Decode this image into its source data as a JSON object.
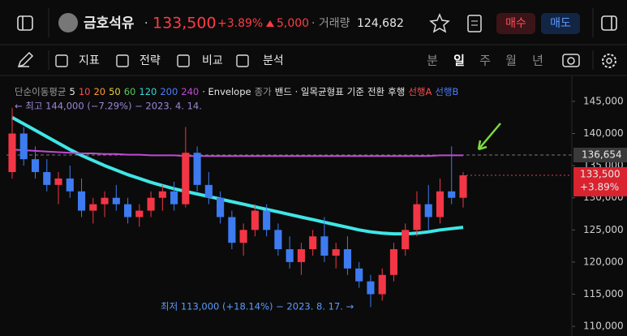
{
  "header": {
    "title": "금호석유",
    "price": "133,500",
    "change_pct": "+3.89%",
    "change_abs": "5,000",
    "volume_label": "· 거래량",
    "volume": "124,682",
    "buy": "매수",
    "sell": "매도"
  },
  "toolbar": {
    "tools": [
      "지표",
      "전략",
      "비교",
      "분석"
    ],
    "periods": [
      "분",
      "일",
      "주",
      "월",
      "년"
    ],
    "selected_period": 1
  },
  "chart_data": {
    "type": "candlestick",
    "legend": [
      {
        "text": "단순이동평균",
        "color": "#9a9a9a"
      },
      {
        "text": "5",
        "color": "#e8e8e8"
      },
      {
        "text": "10",
        "color": "#ff4d4d"
      },
      {
        "text": "20",
        "color": "#ff9a2e"
      },
      {
        "text": "50",
        "color": "#e6d23a"
      },
      {
        "text": "60",
        "color": "#5bc85b"
      },
      {
        "text": "120",
        "color": "#3ad6d6"
      },
      {
        "text": "200",
        "color": "#4a7dff"
      },
      {
        "text": "240",
        "color": "#c04ad6"
      },
      {
        "text": "· Envelope",
        "color": "#e8e8e8"
      },
      {
        "text": "종가",
        "color": "#9a9a9a"
      },
      {
        "text": "밴드 · 일목균형표",
        "color": "#e8e8e8"
      },
      {
        "text": "기준",
        "color": "#e8e8e8"
      },
      {
        "text": "전환",
        "color": "#e8e8e8"
      },
      {
        "text": "후행",
        "color": "#e8e8e8"
      },
      {
        "text": "선행A",
        "color": "#ff4d4d"
      },
      {
        "text": "선행B",
        "color": "#4a7dff"
      }
    ],
    "high_note": "← 최고 144,000 (−7.29%) − 2023. 4. 14.",
    "low_note": "최저 113,000 (+18.14%) − 2023. 8. 17. →",
    "up_color": "#f23645",
    "down_color": "#3d7bf0",
    "open": [
      134000,
      140000,
      136000,
      134000,
      132000,
      133000,
      131000,
      128000,
      129000,
      130000,
      129000,
      127000,
      128000,
      130000,
      131000,
      129000,
      137000,
      132000,
      130000,
      127000,
      123000,
      125000,
      128000,
      125000,
      122000,
      120000,
      122000,
      124000,
      121000,
      122000,
      119000,
      117000,
      115000,
      118000,
      122000,
      125000,
      129000,
      127000,
      131000,
      130000
    ],
    "high": [
      144000,
      141000,
      138000,
      136000,
      134000,
      135000,
      133000,
      130000,
      131000,
      132000,
      130000,
      129000,
      131000,
      132000,
      132500,
      141000,
      138000,
      134000,
      131000,
      128000,
      126000,
      129000,
      129000,
      126000,
      124000,
      123000,
      125000,
      127000,
      123000,
      124000,
      120000,
      118000,
      119000,
      123000,
      126000,
      131000,
      132000,
      133000,
      138000,
      134000
    ],
    "low": [
      133000,
      135000,
      133000,
      131000,
      129000,
      130000,
      127000,
      126000,
      127000,
      128000,
      126000,
      125500,
      127000,
      128000,
      128000,
      128500,
      131000,
      129000,
      126000,
      122000,
      121000,
      124000,
      124000,
      121000,
      119000,
      118000,
      121000,
      120000,
      119000,
      118000,
      116000,
      113000,
      114000,
      117000,
      121000,
      124000,
      125000,
      126000,
      129000,
      128500
    ],
    "close": [
      140000,
      136000,
      134000,
      132000,
      133000,
      131000,
      128000,
      129000,
      130000,
      129000,
      127000,
      128000,
      130000,
      131000,
      129000,
      137000,
      132000,
      130000,
      127000,
      123000,
      125000,
      128000,
      125000,
      122000,
      120000,
      122000,
      124000,
      121000,
      122000,
      119000,
      117000,
      115000,
      118000,
      122000,
      125000,
      129000,
      127000,
      131000,
      130000,
      133500
    ],
    "series": [
      {
        "name": "120",
        "color": "#3fe6e6",
        "values": [
          142500,
          141500,
          140500,
          139500,
          138500,
          137500,
          136600,
          135800,
          135000,
          134300,
          133600,
          133000,
          132400,
          131900,
          131400,
          131000,
          130600,
          130200,
          129800,
          129400,
          129000,
          128600,
          128200,
          127800,
          127400,
          127000,
          126600,
          126200,
          125800,
          125400,
          125000,
          124700,
          124500,
          124400,
          124400,
          124500,
          124700,
          125000,
          125200,
          125400
        ]
      },
      {
        "name": "240",
        "color": "#c04ad6",
        "values": [
          137500,
          137400,
          137300,
          137200,
          137100,
          137000,
          136900,
          136900,
          136800,
          136800,
          136700,
          136700,
          136600,
          136600,
          136600,
          136500,
          136500,
          136500,
          136500,
          136500,
          136500,
          136500,
          136500,
          136500,
          136500,
          136500,
          136500,
          136500,
          136500,
          136500,
          136500,
          136500,
          136500,
          136500,
          136500,
          136500,
          136500,
          136600,
          136600,
          136600
        ]
      }
    ],
    "ylim": [
      108500,
      148900
    ],
    "yticks": [
      {
        "value": 145000,
        "label": "145,000"
      },
      {
        "value": 140000,
        "label": "140,000"
      },
      {
        "value": 135000,
        "label": "135,000"
      },
      {
        "value": 130000,
        "label": "130,000"
      },
      {
        "value": 125000,
        "label": "125,000"
      },
      {
        "value": 120000,
        "label": "120,000"
      },
      {
        "value": 115000,
        "label": "115,000"
      },
      {
        "value": 110000,
        "label": "110,000"
      }
    ],
    "reference": {
      "value": 136654,
      "label": "136,654"
    },
    "last": {
      "value": 133500,
      "label": "133,500",
      "change": "+3.89%"
    }
  }
}
